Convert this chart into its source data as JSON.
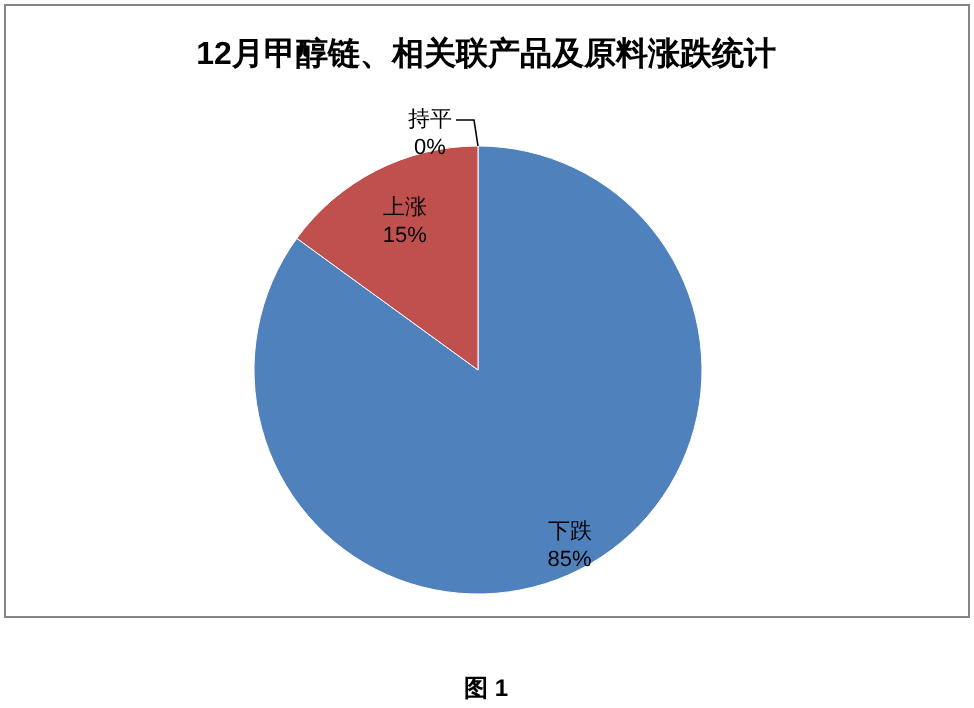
{
  "chart_data": {
    "type": "pie",
    "title": "12月甲醇链、相关联产品及原料涨跌统计",
    "categories": [
      "下跌",
      "上涨",
      "持平"
    ],
    "values": [
      85,
      15,
      0
    ],
    "colors": [
      "#4f81bd",
      "#c0504d",
      "#9bbb59"
    ],
    "value_labels": [
      "85%",
      "15%",
      "0%"
    ],
    "annotations": [
      "图 1"
    ]
  }
}
